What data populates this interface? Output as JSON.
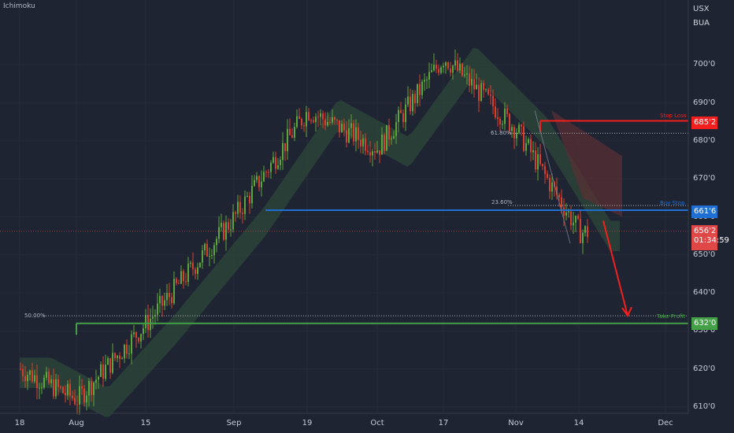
{
  "indicator": "Ichimoku",
  "symbol": {
    "line1": "USX",
    "line2": "BUA"
  },
  "colors": {
    "background": "#1f2433",
    "up": "#5ea63a",
    "down": "#d9402b",
    "stop_loss": "#f21f1f",
    "entry": "#1e6fd1",
    "take_profit": "#43a047",
    "current": "#e04848",
    "cloud_bull": "#2f5438",
    "cloud_bear": "#5b2f33"
  },
  "chart_data": {
    "type": "candlestick",
    "x_ticks": [
      "18",
      "Aug",
      "15",
      "Sep",
      "19",
      "Oct",
      "17",
      "Nov",
      "14",
      "Dec"
    ],
    "y_ticks": [
      "610'0",
      "620'0",
      "630'0",
      "640'0",
      "650'0",
      "660'0",
      "670'0",
      "680'0",
      "690'0",
      "700'0"
    ],
    "ylim": [
      610,
      710
    ],
    "levels": {
      "stop_loss": {
        "label": "Stop Loss",
        "value": 685.25,
        "tag": "685'2"
      },
      "entry": {
        "label": "Buy Stop",
        "value": 661.75,
        "tag": "661'6"
      },
      "take_profit": {
        "label": "Take Profit",
        "value": 632.0,
        "tag": "632'0"
      },
      "current": {
        "value": 656.25,
        "tag": "656'2",
        "countdown": "01:34:59"
      }
    },
    "fibonacci": [
      {
        "label": "61.80%",
        "value": 682
      },
      {
        "label": "23.60%",
        "value": 663
      },
      {
        "label": "50.00%",
        "value": 634
      }
    ],
    "price_path": [
      [
        "18",
        620
      ],
      [
        "Aug",
        612
      ],
      [
        "15",
        632
      ],
      [
        "Sep",
        660
      ],
      [
        "19",
        688
      ],
      [
        "Oct",
        678
      ],
      [
        "17",
        702
      ],
      [
        "Nov",
        683
      ],
      [
        "14",
        656
      ]
    ],
    "projection": {
      "from": 659,
      "to": 634
    }
  }
}
